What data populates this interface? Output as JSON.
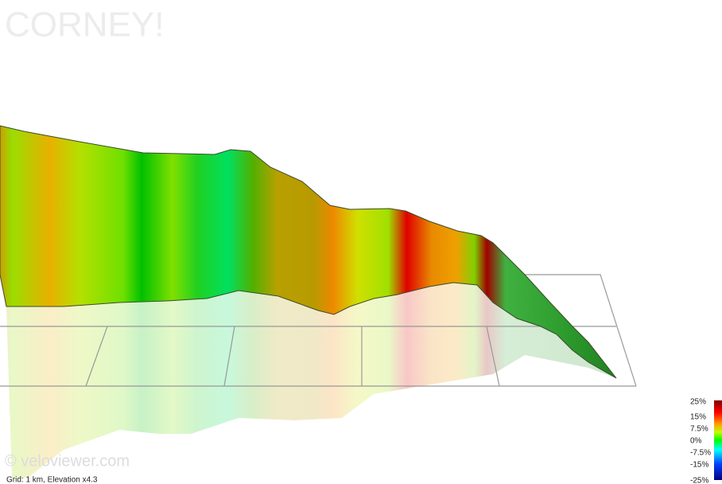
{
  "header": {
    "title": "CORNEY!"
  },
  "watermark": "© veloviewer.com",
  "footer": "Grid: 1 km, Elevation x4.3",
  "legend": {
    "labels": [
      "25%",
      "15%",
      "7.5%",
      "0%",
      "-7.5%",
      "-15%",
      "-25%"
    ]
  }
}
